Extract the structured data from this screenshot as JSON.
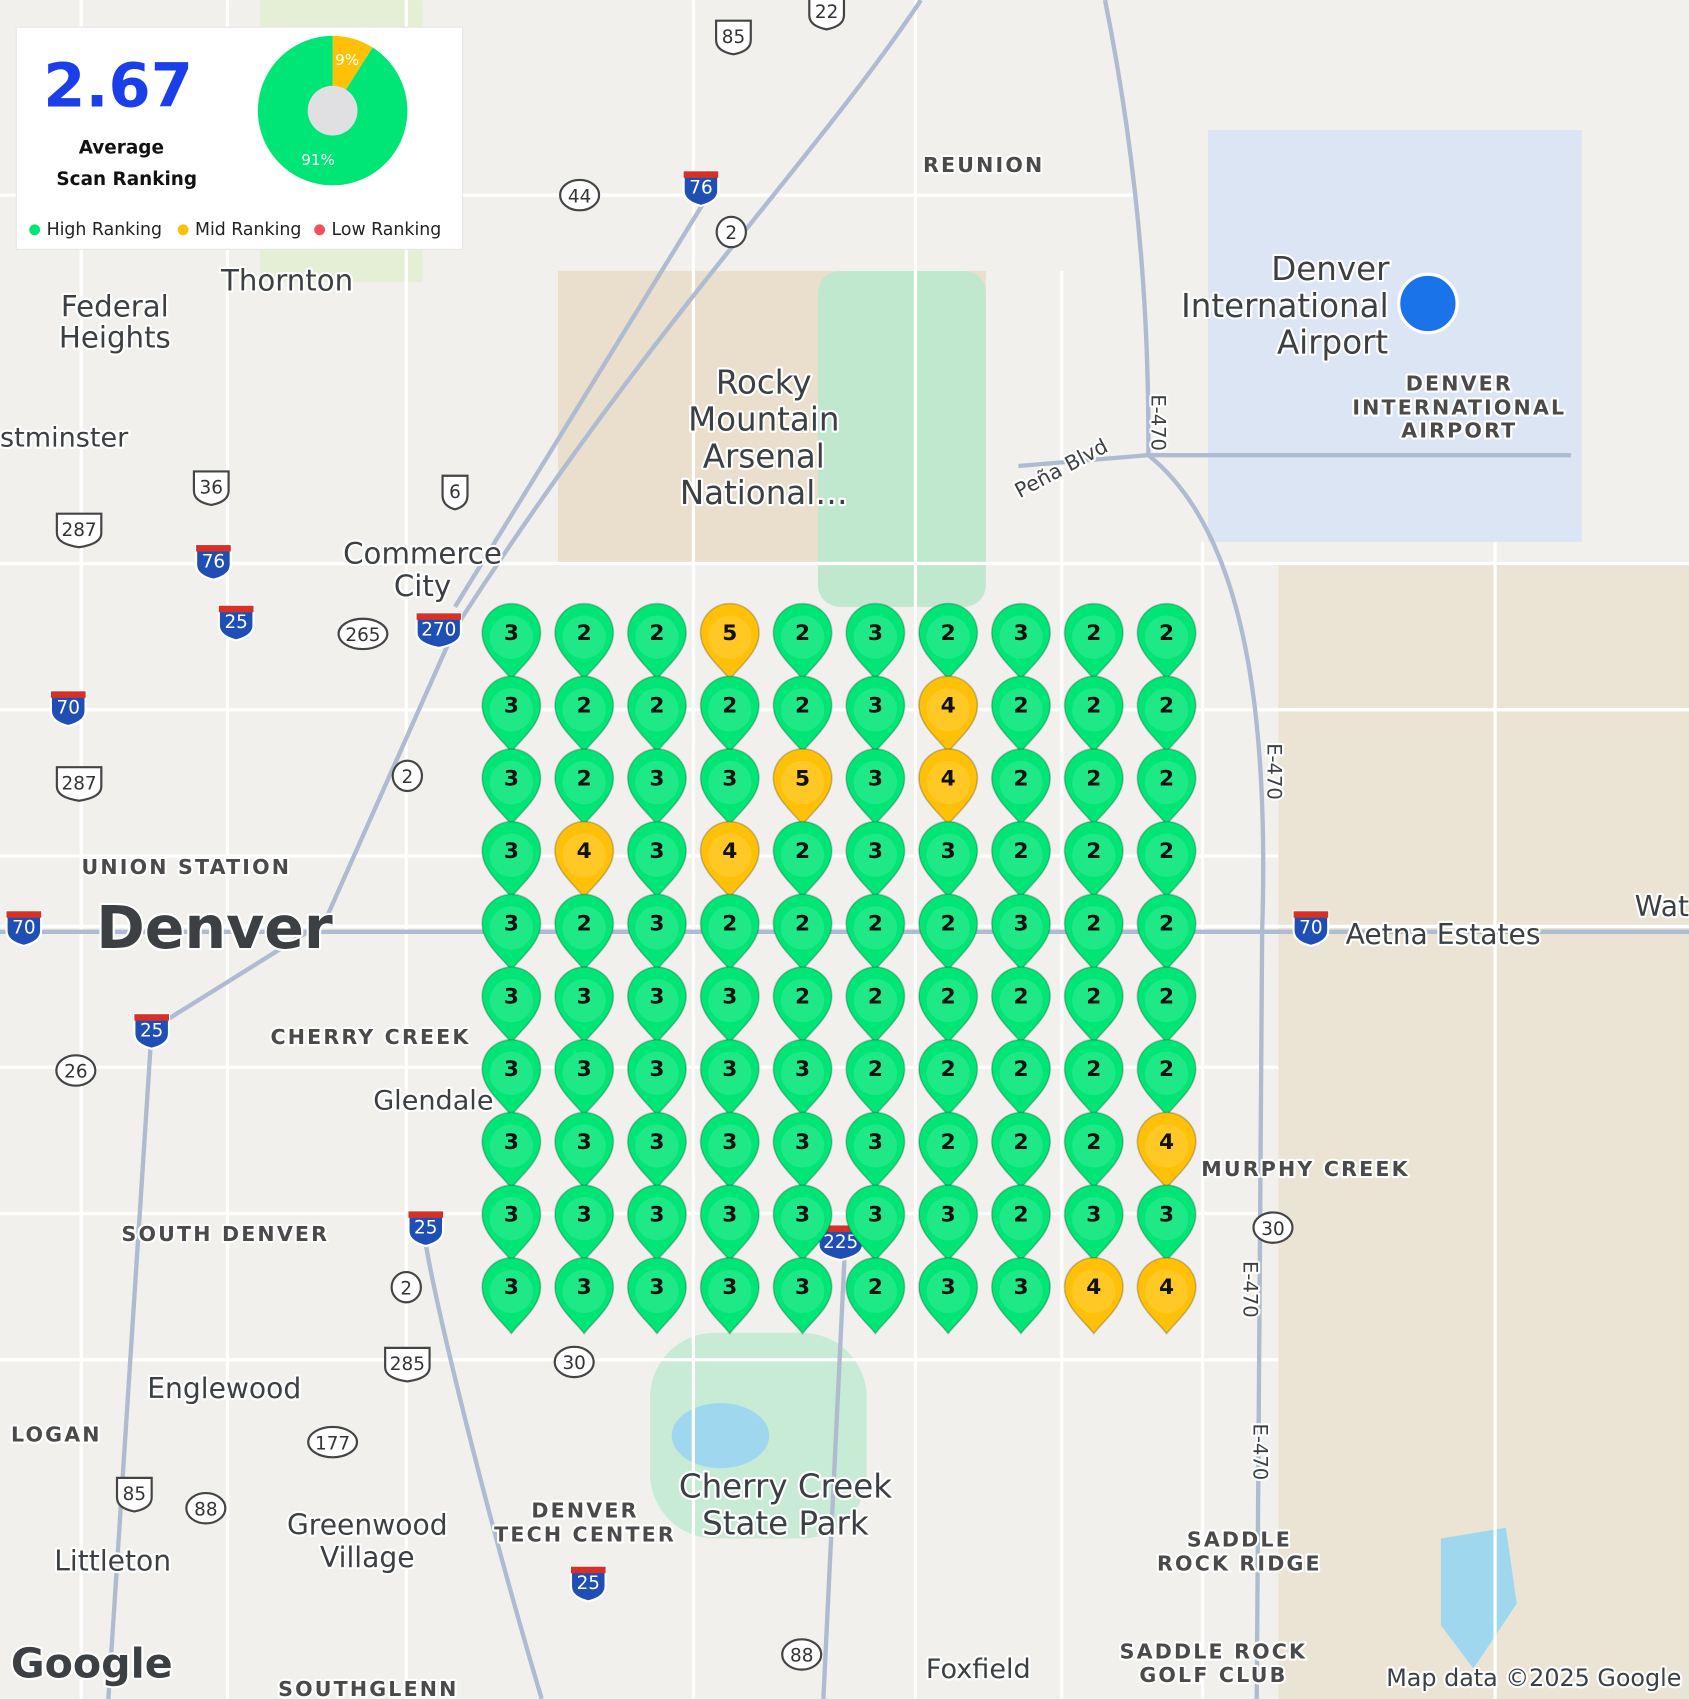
{
  "summary": {
    "average": 2.67,
    "label_lines": [
      "Average",
      "Scan Ranking"
    ]
  },
  "donut": {
    "values": [
      91,
      9
    ],
    "value_labels": [
      "91%",
      "9%"
    ],
    "colors": [
      "#00e676",
      "#ffc107"
    ]
  },
  "legend": [
    {
      "name": "High Ranking",
      "color": "#00e676"
    },
    {
      "name": "Mid Ranking",
      "color": "#ffc107"
    },
    {
      "name": "Low Ranking",
      "color": "#f4505a"
    }
  ],
  "grid": {
    "rows": [
      [
        3,
        2,
        2,
        5,
        2,
        3,
        2,
        3,
        2,
        2
      ],
      [
        3,
        2,
        2,
        2,
        2,
        3,
        4,
        2,
        2,
        2
      ],
      [
        3,
        2,
        3,
        3,
        5,
        3,
        4,
        2,
        2,
        2
      ],
      [
        3,
        4,
        3,
        4,
        2,
        3,
        3,
        2,
        2,
        2
      ],
      [
        3,
        2,
        3,
        2,
        2,
        2,
        2,
        3,
        2,
        2
      ],
      [
        3,
        3,
        3,
        3,
        2,
        2,
        2,
        2,
        2,
        2
      ],
      [
        3,
        3,
        3,
        3,
        3,
        2,
        2,
        2,
        2,
        2
      ],
      [
        3,
        3,
        3,
        3,
        3,
        3,
        2,
        2,
        2,
        4
      ],
      [
        3,
        3,
        3,
        3,
        3,
        3,
        3,
        2,
        3,
        3
      ],
      [
        3,
        3,
        3,
        3,
        3,
        2,
        3,
        3,
        4,
        4
      ]
    ]
  },
  "map": {
    "labels": [
      "Thornton",
      "Federal",
      "Heights",
      "stminster",
      "Commerce",
      "City",
      "REUNION",
      "Rocky",
      "Mountain",
      "Arsenal",
      "National…",
      "Denver",
      "International",
      "Airport",
      "DENVER",
      "INTERNATIONAL",
      "AIRPORT",
      "Peña Blvd",
      "UNION STATION",
      "Denver",
      "CHERRY CREEK",
      "Glendale",
      "SOUTH DENVER",
      "Englewood",
      "LOGAN",
      "Littleton",
      "Greenwood",
      "Village",
      "DENVER",
      "TECH CENTER",
      "Cherry Creek",
      "State Park",
      "Foxfield",
      "SADDLE",
      "ROCK RIDGE",
      "SADDLE ROCK",
      "GOLF CLUB",
      "SOUTHGLENN",
      "MURPHY CREEK",
      "Aetna Estates",
      "Wat",
      "E-470",
      "E-470",
      "E-470",
      "E-470"
    ],
    "shields": [
      {
        "label": "22",
        "kind": "us"
      },
      {
        "label": "85",
        "kind": "us"
      },
      {
        "label": "44",
        "kind": "state"
      },
      {
        "label": "76",
        "kind": "interstate"
      },
      {
        "label": "2",
        "kind": "state"
      },
      {
        "label": "36",
        "kind": "us"
      },
      {
        "label": "6",
        "kind": "us"
      },
      {
        "label": "287",
        "kind": "us"
      },
      {
        "label": "76",
        "kind": "interstate"
      },
      {
        "label": "25",
        "kind": "interstate"
      },
      {
        "label": "265",
        "kind": "state"
      },
      {
        "label": "270",
        "kind": "interstate"
      },
      {
        "label": "70",
        "kind": "interstate"
      },
      {
        "label": "287",
        "kind": "us"
      },
      {
        "label": "2",
        "kind": "state"
      },
      {
        "label": "70",
        "kind": "interstate"
      },
      {
        "label": "25",
        "kind": "interstate"
      },
      {
        "label": "26",
        "kind": "state"
      },
      {
        "label": "25",
        "kind": "interstate"
      },
      {
        "label": "2",
        "kind": "state"
      },
      {
        "label": "285",
        "kind": "us"
      },
      {
        "label": "30",
        "kind": "state"
      },
      {
        "label": "177",
        "kind": "state"
      },
      {
        "label": "85",
        "kind": "us"
      },
      {
        "label": "88",
        "kind": "state"
      },
      {
        "label": "25",
        "kind": "interstate"
      },
      {
        "label": "88",
        "kind": "state"
      },
      {
        "label": "30",
        "kind": "state"
      },
      {
        "label": "70",
        "kind": "interstate"
      },
      {
        "label": "225",
        "kind": "interstate"
      }
    ],
    "attribution": "Map data ©2025 Google",
    "logo": "Google"
  }
}
